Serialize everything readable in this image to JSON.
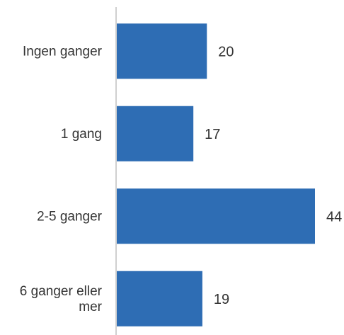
{
  "chart_data": {
    "type": "bar",
    "orientation": "horizontal",
    "categories": [
      [
        "Ingen ganger"
      ],
      [
        "1 gang"
      ],
      [
        "2-5 ganger"
      ],
      [
        "6 ganger eller",
        "mer"
      ]
    ],
    "values": [
      20,
      17,
      44,
      19
    ],
    "data_labels": [
      "20",
      "17",
      "44",
      "19"
    ],
    "title": "",
    "xlabel": "",
    "ylabel": "",
    "xlim": [
      0,
      44
    ],
    "grid": false,
    "legend": "none",
    "colors": {
      "bar": "#2e6db4",
      "axis": "#d0d0d0",
      "text": "#333333"
    }
  }
}
